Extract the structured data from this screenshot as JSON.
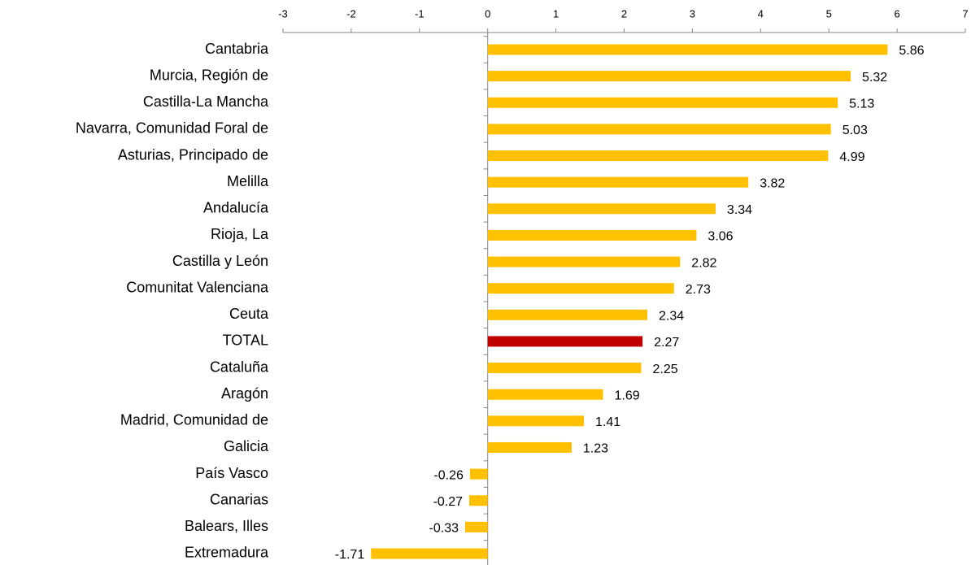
{
  "chart_data": {
    "type": "hbar",
    "categories": [
      "Cantabria",
      "Murcia, Región de",
      "Castilla-La Mancha",
      "Navarra, Comunidad Foral de",
      "Asturias, Principado de",
      "Melilla",
      "Andalucía",
      "Rioja, La",
      "Castilla y León",
      "Comunitat Valenciana",
      "Ceuta",
      "TOTAL",
      "Cataluña",
      "Aragón",
      "Madrid, Comunidad de",
      "Galicia",
      "País Vasco",
      "Canarias",
      "Balears, Illes",
      "Extremadura"
    ],
    "values": [
      5.86,
      5.32,
      5.13,
      5.03,
      4.99,
      3.82,
      3.34,
      3.06,
      2.82,
      2.73,
      2.34,
      2.27,
      2.25,
      1.69,
      1.41,
      1.23,
      -0.26,
      -0.27,
      -0.33,
      -1.71
    ],
    "colors": [
      "#ffc000",
      "#ffc000",
      "#ffc000",
      "#ffc000",
      "#ffc000",
      "#ffc000",
      "#ffc000",
      "#ffc000",
      "#ffc000",
      "#ffc000",
      "#ffc000",
      "#c00000",
      "#ffc000",
      "#ffc000",
      "#ffc000",
      "#ffc000",
      "#ffc000",
      "#ffc000",
      "#ffc000",
      "#ffc000"
    ],
    "xlim": [
      -3,
      7
    ],
    "xticks": [
      -3,
      -2,
      -1,
      0,
      1,
      2,
      3,
      4,
      5,
      6,
      7
    ],
    "grid": false
  }
}
